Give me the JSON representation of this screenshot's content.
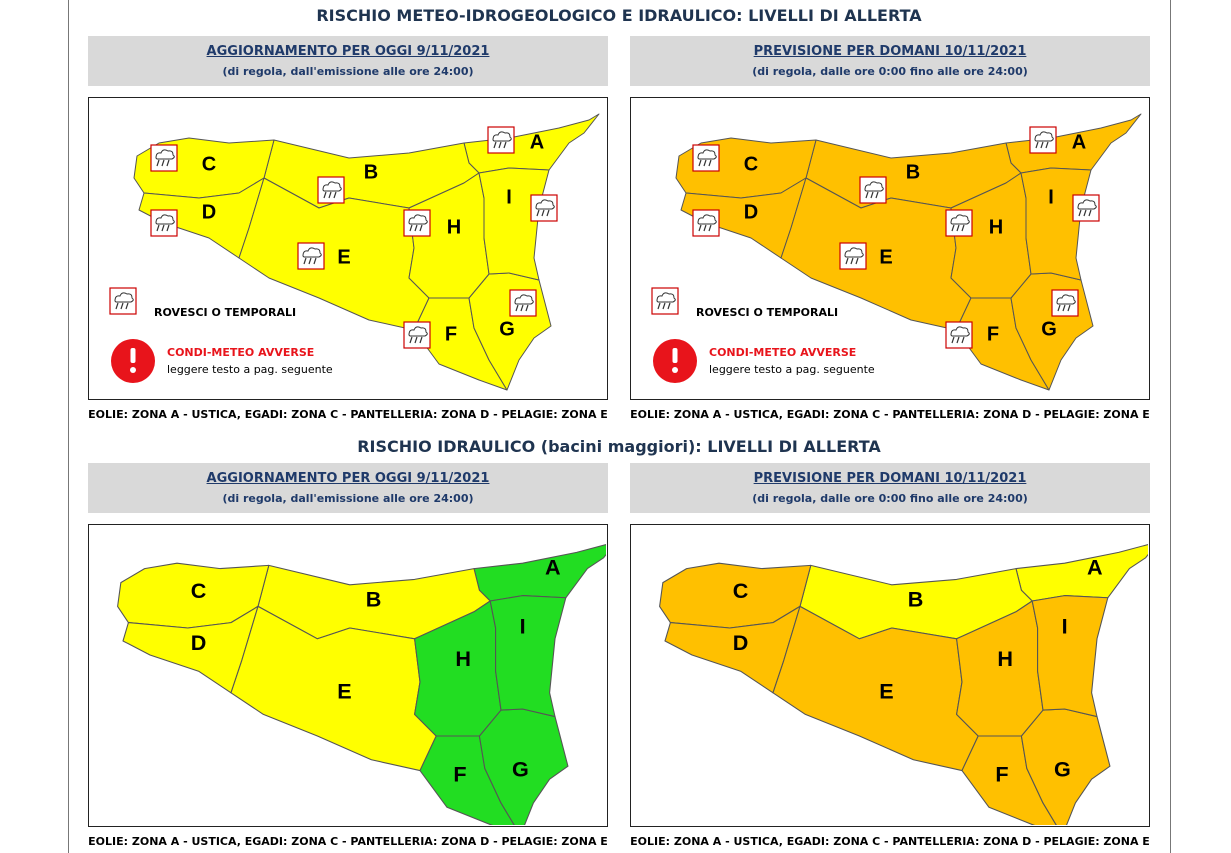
{
  "sections": [
    {
      "title": "RISCHIO METEO-IDROGEOLOGICO E IDRAULICO: LIVELLI DI ALLERTA",
      "panels": [
        {
          "header": "AGGIORNAMENTO PER OGGI 9/11/2021",
          "subheader": "(di regola, dall'emissione alle ore 24:00)",
          "zones": [
            {
              "id": "A",
              "color": "#ffff00"
            },
            {
              "id": "B",
              "color": "#ffff00"
            },
            {
              "id": "C",
              "color": "#ffff00"
            },
            {
              "id": "D",
              "color": "#ffff00"
            },
            {
              "id": "E",
              "color": "#ffff00"
            },
            {
              "id": "F",
              "color": "#ffff00"
            },
            {
              "id": "G",
              "color": "#ffff00"
            },
            {
              "id": "H",
              "color": "#ffff00"
            },
            {
              "id": "I",
              "color": "#ffff00"
            }
          ],
          "legend": {
            "storms": "ROVESCI O TEMPORALI",
            "warning": "CONDI-METEO AVVERSE",
            "note": "leggere testo a pag. seguente"
          },
          "footer": "EOLIE: ZONA A - USTICA, EGADI: ZONA C - PANTELLERIA: ZONA D - PELAGIE: ZONA E"
        },
        {
          "header": "PREVISIONE PER DOMANI 10/11/2021",
          "subheader": "(di regola, dalle ore 0:00 fino alle ore 24:00)",
          "zones": [
            {
              "id": "A",
              "color": "#ffc000"
            },
            {
              "id": "B",
              "color": "#ffc000"
            },
            {
              "id": "C",
              "color": "#ffc000"
            },
            {
              "id": "D",
              "color": "#ffc000"
            },
            {
              "id": "E",
              "color": "#ffc000"
            },
            {
              "id": "F",
              "color": "#ffc000"
            },
            {
              "id": "G",
              "color": "#ffc000"
            },
            {
              "id": "H",
              "color": "#ffc000"
            },
            {
              "id": "I",
              "color": "#ffc000"
            }
          ],
          "legend": {
            "storms": "ROVESCI O TEMPORALI",
            "warning": "CONDI-METEO AVVERSE",
            "note": "leggere testo a pag. seguente"
          },
          "footer": "EOLIE: ZONA A - USTICA, EGADI: ZONA C - PANTELLERIA: ZONA D - PELAGIE: ZONA E"
        }
      ]
    },
    {
      "title": "RISCHIO IDRAULICO (bacini maggiori): LIVELLI DI ALLERTA",
      "panels": [
        {
          "header": "AGGIORNAMENTO PER OGGI 9/11/2021",
          "subheader": "(di regola, dall'emissione alle ore 24:00)",
          "zones": [
            {
              "id": "A",
              "color": "#22dd22"
            },
            {
              "id": "B",
              "color": "#ffff00"
            },
            {
              "id": "C",
              "color": "#ffff00"
            },
            {
              "id": "D",
              "color": "#ffff00"
            },
            {
              "id": "E",
              "color": "#ffff00"
            },
            {
              "id": "F",
              "color": "#22dd22"
            },
            {
              "id": "G",
              "color": "#22dd22"
            },
            {
              "id": "H",
              "color": "#22dd22"
            },
            {
              "id": "I",
              "color": "#22dd22"
            }
          ],
          "footer": "EOLIE: ZONA A - USTICA, EGADI: ZONA C - PANTELLERIA: ZONA D - PELAGIE: ZONA E"
        },
        {
          "header": "PREVISIONE PER DOMANI 10/11/2021",
          "subheader": "(di regola, dalle ore 0:00 fino alle ore 24:00)",
          "zones": [
            {
              "id": "A",
              "color": "#ffff00"
            },
            {
              "id": "B",
              "color": "#ffff00"
            },
            {
              "id": "C",
              "color": "#ffc000"
            },
            {
              "id": "D",
              "color": "#ffc000"
            },
            {
              "id": "E",
              "color": "#ffc000"
            },
            {
              "id": "F",
              "color": "#ffc000"
            },
            {
              "id": "G",
              "color": "#ffc000"
            },
            {
              "id": "H",
              "color": "#ffc000"
            },
            {
              "id": "I",
              "color": "#ffc000"
            }
          ],
          "footer": "EOLIE: ZONA A - USTICA, EGADI: ZONA C - PANTELLERIA: ZONA D - PELAGIE: ZONA E"
        }
      ]
    }
  ]
}
